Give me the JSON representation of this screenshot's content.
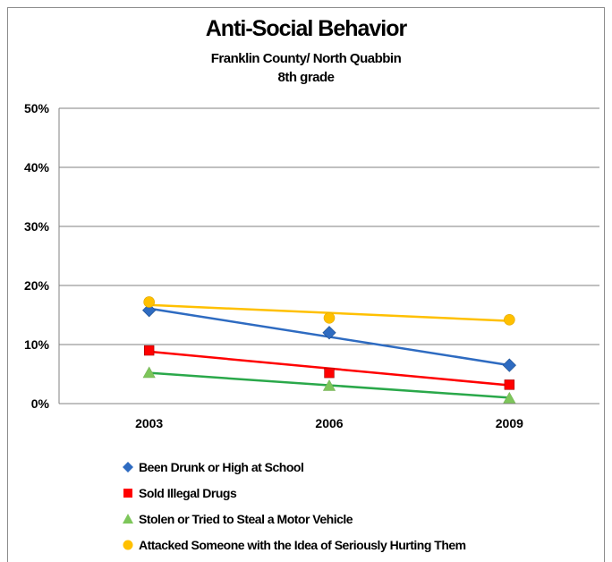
{
  "chart_data": {
    "type": "line",
    "title": "Anti-Social Behavior",
    "subtitle": [
      "Franklin County/ North Quabbin",
      "8th grade"
    ],
    "categories": [
      "2003",
      "2006",
      "2009"
    ],
    "ylim": [
      0,
      50
    ],
    "yticks": [
      "0%",
      "10%",
      "20%",
      "30%",
      "40%",
      "50%"
    ],
    "grid": true,
    "legend_position": "bottom",
    "series": [
      {
        "name": "Been Drunk or High at School",
        "values": [
          15.8,
          12.0,
          6.5
        ],
        "trend": [
          16.1,
          11.3,
          6.5
        ],
        "color": "#2e6bc1",
        "marker": "diamond"
      },
      {
        "name": "Sold Illegal Drugs",
        "values": [
          9.0,
          5.2,
          3.2
        ],
        "trend": [
          8.8,
          5.9,
          3.1
        ],
        "color": "#ff0000",
        "marker": "square"
      },
      {
        "name": "Stolen or Tried to Steal a Motor Vehicle",
        "values": [
          5.2,
          3.0,
          0.9
        ],
        "trend": [
          5.2,
          3.1,
          1.0
        ],
        "color": "#2aa84a",
        "marker": "triangle"
      },
      {
        "name": "Attacked Someone with the Idea of Seriously Hurting Them",
        "values": [
          17.2,
          14.5,
          14.2
        ],
        "trend": [
          16.7,
          15.4,
          14.0
        ],
        "color": "#ffc000",
        "marker": "circle"
      }
    ]
  }
}
